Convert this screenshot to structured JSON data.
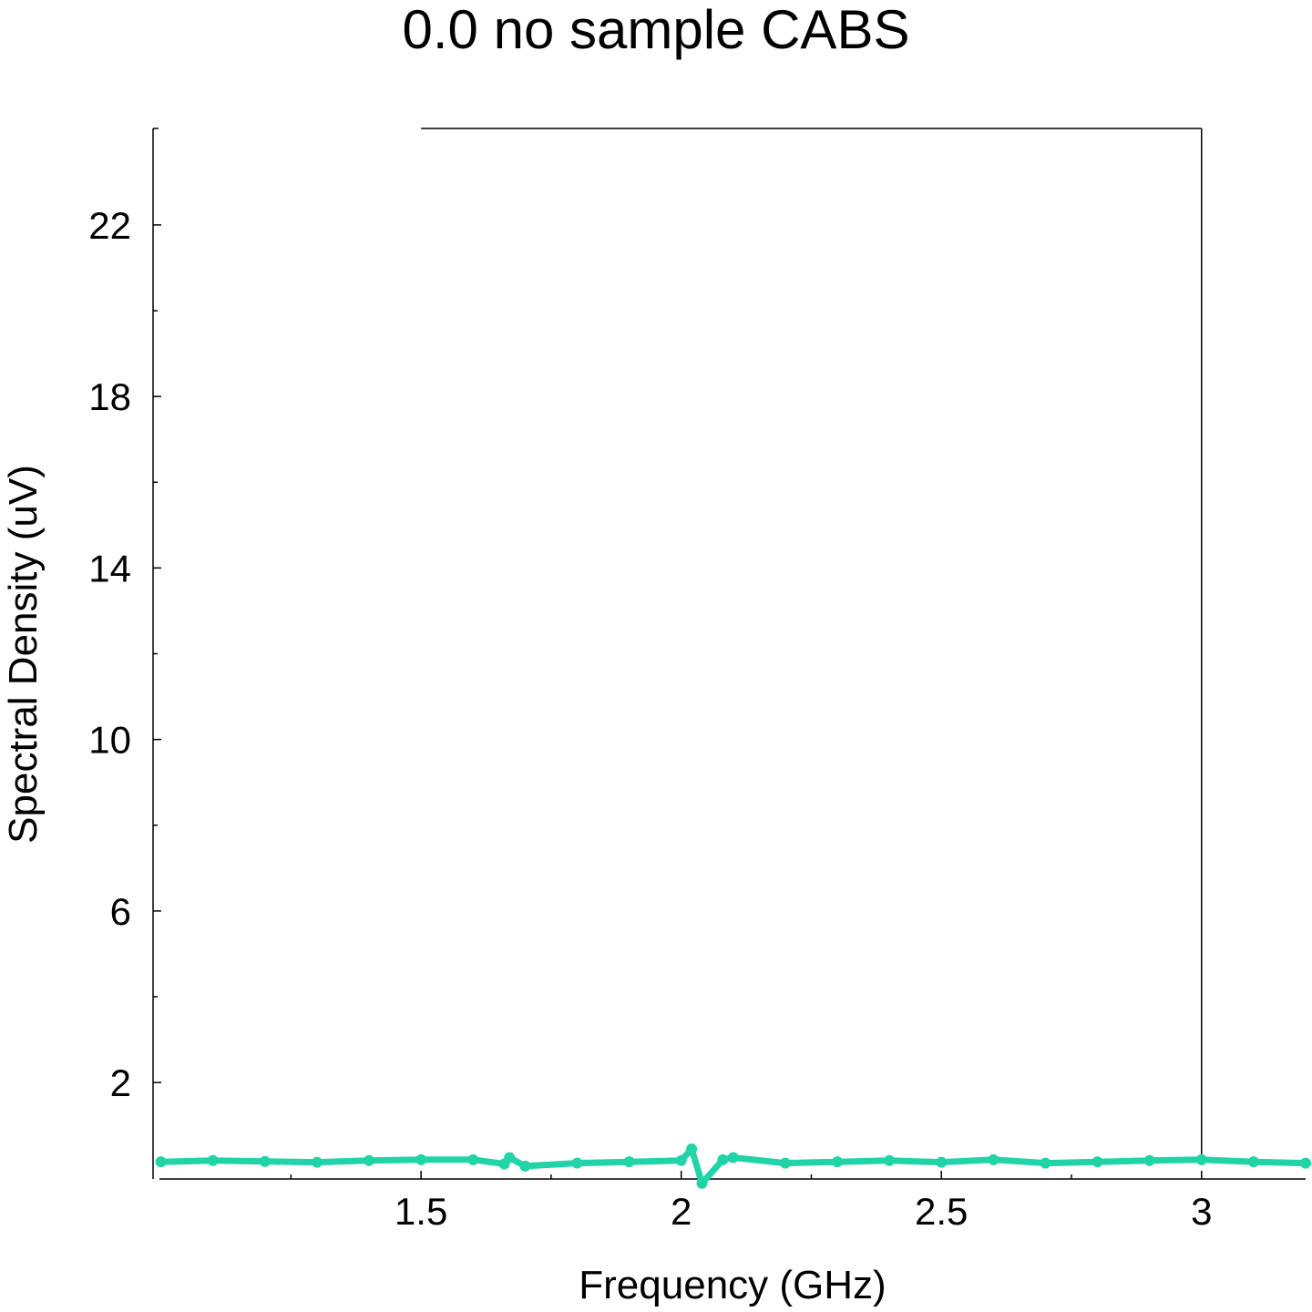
{
  "chart_data": {
    "type": "scatter",
    "title": "0.0 no sample CABS",
    "xlabel": "Frequency (GHz)",
    "ylabel": "Spectral Density (uV)",
    "xlim": [
      0.985,
      3.2
    ],
    "ylim": [
      -0.25,
      24.25
    ],
    "x_ticks": [
      1.5,
      2,
      2.5,
      3
    ],
    "x_tick_labels": [
      "1.5",
      "2",
      "2.5",
      "3"
    ],
    "y_ticks": [
      2,
      6,
      10,
      14,
      18,
      22
    ],
    "y_tick_labels": [
      "2",
      "6",
      "10",
      "14",
      "18",
      "22"
    ],
    "grid": false,
    "series": [
      {
        "color": "#20d4a8",
        "x": [
          1.0,
          1.1,
          1.2,
          1.3,
          1.4,
          1.5,
          1.6,
          1.66,
          1.67,
          1.7,
          1.8,
          1.9,
          2.0,
          2.02,
          2.04,
          2.08,
          2.1,
          2.2,
          2.3,
          2.4,
          2.5,
          2.6,
          2.7,
          2.8,
          2.9,
          3.0,
          3.1,
          3.2
        ],
        "y": [
          0.15,
          0.18,
          0.16,
          0.14,
          0.18,
          0.2,
          0.2,
          0.1,
          0.25,
          0.05,
          0.12,
          0.15,
          0.18,
          0.45,
          -0.35,
          0.2,
          0.25,
          0.12,
          0.15,
          0.18,
          0.14,
          0.2,
          0.12,
          0.15,
          0.18,
          0.2,
          0.15,
          0.12
        ]
      }
    ]
  }
}
